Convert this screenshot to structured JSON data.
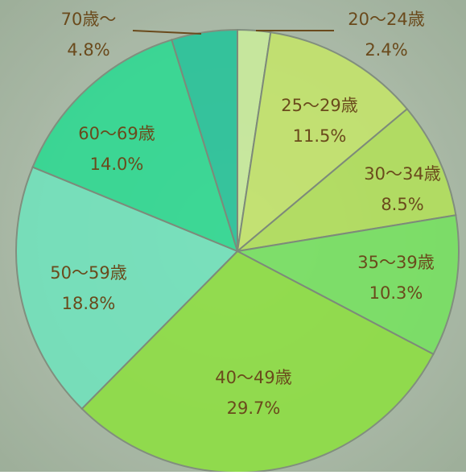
{
  "chart_data": {
    "type": "pie",
    "categories": [
      "20〜24歳",
      "25〜29歳",
      "30〜34歳",
      "35〜39歳",
      "40〜49歳",
      "50〜59歳",
      "60〜69歳",
      "70歳〜"
    ],
    "values": [
      2.4,
      11.5,
      8.5,
      10.3,
      29.7,
      18.8,
      14.0,
      4.8
    ],
    "value_labels": [
      "2.4%",
      "11.5%",
      "8.5%",
      "10.3%",
      "29.7%",
      "18.8%",
      "14.0%",
      "4.8%"
    ],
    "colors": [
      "#c9eb9c",
      "#c4e46c",
      "#b2df5c",
      "#78e162",
      "#8ede44",
      "#72e2bc",
      "#30d992",
      "#28c39a"
    ]
  }
}
